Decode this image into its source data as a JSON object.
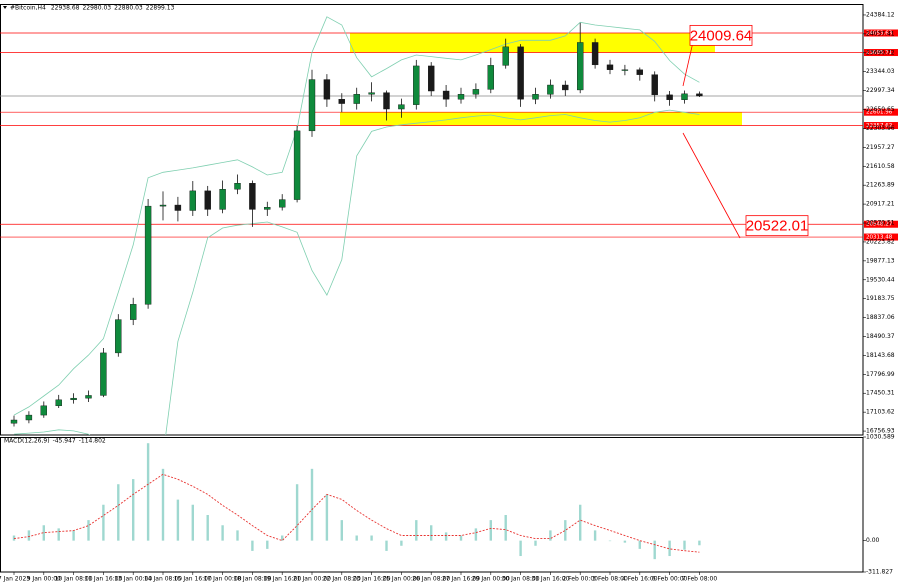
{
  "chart_data": [
    {
      "type": "candlestick",
      "title": "#Bitcoin,H4",
      "categories": [
        "7 Jan 2023",
        null,
        "9 Jan 00:00",
        null,
        "10 Jan 08:00",
        null,
        "11 Jan 16:00",
        null,
        "13 Jan 00:00",
        null,
        "14 Jan 08:00",
        null,
        "15 Jan 16:00",
        null,
        "17 Jan 00:00",
        null,
        "18 Jan 08:00",
        null,
        "19 Jan 16:00",
        null,
        "21 Jan 00:00",
        null,
        "22 Jan 08:00",
        null,
        "23 Jan 16:00",
        null,
        "25 Jan 00:00",
        null,
        "26 Jan 08:00",
        null,
        "27 Jan 16:00",
        null,
        "29 Jan 00:00",
        null,
        "30 Jan 08:00",
        null,
        "31 Jan 16:00",
        null,
        "2 Feb 00:00",
        null,
        "3 Feb 08:00",
        null,
        "4 Feb 16:00",
        null,
        "6 Feb 00:00",
        null,
        "7 Feb 08:00"
      ],
      "open": [
        16900,
        16960,
        17050,
        17220,
        17330,
        17360,
        17410,
        18190,
        18800,
        19080,
        20880,
        20900,
        20800,
        21160,
        20820,
        21190,
        21300,
        20820,
        20860,
        21000,
        22260,
        23200,
        22840,
        22760,
        22930,
        22960,
        22660,
        22740,
        23450,
        22990,
        22840,
        22930,
        23020,
        23460,
        23800,
        22840,
        22930,
        23100,
        23010,
        23880,
        23470,
        23380,
        23380,
        23290,
        22920,
        22830,
        22938.68
      ],
      "high": [
        17040,
        17120,
        17300,
        17420,
        17450,
        17500,
        18280,
        18900,
        19200,
        21010,
        21150,
        21050,
        21340,
        21250,
        21350,
        21460,
        21350,
        20960,
        21100,
        22350,
        23380,
        23300,
        22950,
        23050,
        23150,
        23000,
        22850,
        23560,
        23520,
        23100,
        23050,
        23130,
        23600,
        23950,
        23850,
        23050,
        23200,
        23180,
        24240,
        23950,
        23560,
        23470,
        23420,
        23350,
        22990,
        23000,
        22980.03
      ],
      "low": [
        16840,
        16900,
        17000,
        17180,
        17260,
        17290,
        17380,
        18120,
        18700,
        19000,
        20620,
        20600,
        20700,
        20700,
        20750,
        21100,
        20500,
        20700,
        20800,
        20950,
        22150,
        22700,
        22600,
        22650,
        22800,
        22450,
        22500,
        22650,
        22900,
        22700,
        22760,
        22850,
        22950,
        23400,
        22700,
        22750,
        22850,
        22900,
        22950,
        23400,
        23300,
        23280,
        23180,
        22800,
        22720,
        22760,
        22880.03
      ],
      "close": [
        16960,
        17050,
        17220,
        17330,
        17360,
        17410,
        18190,
        18800,
        19080,
        20880,
        20900,
        20800,
        21160,
        20820,
        21190,
        21300,
        20820,
        20860,
        21000,
        22260,
        23200,
        22840,
        22760,
        22930,
        22960,
        22660,
        22740,
        23450,
        22990,
        22840,
        22930,
        23020,
        23460,
        23800,
        22840,
        22930,
        23100,
        23010,
        23880,
        23470,
        23380,
        23380,
        23290,
        22920,
        22830,
        22938.68,
        22899.13
      ],
      "upper_band": [
        17050,
        17200,
        17400,
        17600,
        17900,
        18150,
        18450,
        19300,
        20170,
        21400,
        21500,
        21540,
        21580,
        21630,
        21680,
        21730,
        21600,
        21450,
        21500,
        22300,
        23700,
        24350,
        24200,
        23600,
        23250,
        23400,
        23560,
        23650,
        23620,
        23590,
        23560,
        23650,
        23750,
        23850,
        23920,
        23920,
        23920,
        24000,
        24250,
        24200,
        24170,
        24140,
        24110,
        23900,
        23550,
        23300,
        23150
      ],
      "lower_band": [
        16700,
        16720,
        16740,
        16780,
        16760,
        16700,
        16500,
        16300,
        16200,
        16100,
        16300,
        18400,
        19300,
        20300,
        20480,
        20530,
        20560,
        20590,
        20500,
        20400,
        19700,
        19250,
        19900,
        21800,
        22250,
        22330,
        22370,
        22400,
        22430,
        22460,
        22500,
        22530,
        22550,
        22500,
        22460,
        22500,
        22540,
        22560,
        22500,
        22450,
        22420,
        22450,
        22500,
        22600,
        22640,
        22600,
        22560
      ],
      "up_color": "#0f8a3c",
      "down_color": "#1a1a1a",
      "band_color": "#7fcfb0",
      "ylim": [
        16685,
        24585
      ],
      "yticks": [
        16756.93,
        17103.62,
        17450.31,
        17796.99,
        18143.68,
        18490.37,
        18837.06,
        19183.75,
        19530.44,
        19877.13,
        20223.82,
        20570.51,
        20917.21,
        21263.89,
        21610.58,
        21957.27,
        22303.96,
        22650.65,
        22997.34,
        23344.03,
        23690.72,
        24037.41,
        24384.12
      ],
      "levels": [
        24053.63,
        23695.71,
        22601.96,
        22357.62,
        20548.27,
        20313.48
      ],
      "level_color": "#ff0000",
      "zone_color": "#ffff00",
      "annotations": [
        24009.64,
        20522.01
      ]
    },
    {
      "type": "macd",
      "title": "MACD(12,26,9)",
      "histogram": [
        51,
        102,
        153,
        122,
        102,
        204,
        357,
        561,
        612,
        969,
        714,
        408,
        357,
        255,
        153,
        102,
        -102,
        -82,
        51,
        561,
        714,
        459,
        204,
        51,
        51,
        -102,
        -51,
        204,
        153,
        82,
        51,
        122,
        204,
        255,
        -153,
        -51,
        102,
        204,
        357,
        102,
        0,
        -20,
        -82,
        -184,
        -153,
        -90,
        -45.947
      ],
      "signal": [
        20,
        40,
        80,
        90,
        100,
        150,
        250,
        350,
        460,
        560,
        660,
        610,
        540,
        460,
        350,
        255,
        150,
        51,
        0,
        150,
        310,
        460,
        410,
        300,
        204,
        120,
        51,
        51,
        51,
        51,
        51,
        80,
        122,
        110,
        51,
        20,
        20,
        102,
        204,
        150,
        102,
        50,
        0,
        -40,
        -82,
        -100,
        -114.802
      ],
      "histogram_color": "#9fd8d0",
      "signal_color": "#e8322f",
      "ylim": [
        -311.827,
        1030.589
      ],
      "yticks": [
        1030.589,
        {
          "value": 0,
          "label": "0.00"
        },
        -311.827
      ]
    }
  ]
}
